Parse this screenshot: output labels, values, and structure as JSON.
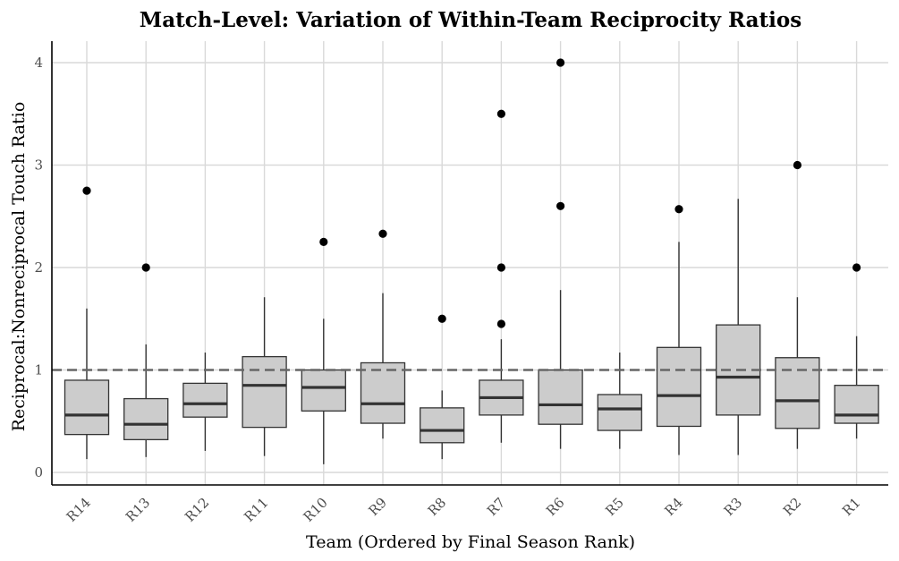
{
  "chart_data": {
    "type": "boxplot",
    "title": "Match-Level: Variation of Within-Team Reciprocity Ratios",
    "xlabel": "Team (Ordered by Final Season Rank)",
    "ylabel": "Reciprocal:Nonreciprocal Touch Ratio",
    "ylim": [
      -0.12,
      4.2
    ],
    "yticks": [
      0,
      1,
      2,
      3,
      4
    ],
    "reference_line": 1,
    "grid": true,
    "categories": [
      "R14",
      "R13",
      "R12",
      "R11",
      "R10",
      "R9",
      "R8",
      "R7",
      "R6",
      "R5",
      "R4",
      "R3",
      "R2",
      "R1"
    ],
    "boxes": [
      {
        "team": "R14",
        "min": 0.13,
        "q1": 0.37,
        "median": 0.56,
        "q3": 0.9,
        "max": 1.6,
        "outliers": [
          2.75
        ]
      },
      {
        "team": "R13",
        "min": 0.15,
        "q1": 0.32,
        "median": 0.47,
        "q3": 0.72,
        "max": 1.25,
        "outliers": [
          2.0
        ]
      },
      {
        "team": "R12",
        "min": 0.21,
        "q1": 0.54,
        "median": 0.67,
        "q3": 0.87,
        "max": 1.17,
        "outliers": []
      },
      {
        "team": "R11",
        "min": 0.16,
        "q1": 0.44,
        "median": 0.85,
        "q3": 1.13,
        "max": 1.71,
        "outliers": []
      },
      {
        "team": "R10",
        "min": 0.08,
        "q1": 0.6,
        "median": 0.83,
        "q3": 1.0,
        "max": 1.5,
        "outliers": [
          2.25
        ]
      },
      {
        "team": "R9",
        "min": 0.33,
        "q1": 0.48,
        "median": 0.67,
        "q3": 1.07,
        "max": 1.75,
        "outliers": [
          2.33
        ]
      },
      {
        "team": "R8",
        "min": 0.13,
        "q1": 0.29,
        "median": 0.41,
        "q3": 0.63,
        "max": 0.8,
        "outliers": [
          1.5
        ]
      },
      {
        "team": "R7",
        "min": 0.29,
        "q1": 0.56,
        "median": 0.73,
        "q3": 0.9,
        "max": 1.3,
        "outliers": [
          1.45,
          2.0,
          3.5
        ]
      },
      {
        "team": "R6",
        "min": 0.23,
        "q1": 0.47,
        "median": 0.66,
        "q3": 1.0,
        "max": 1.78,
        "outliers": [
          2.6,
          4.0
        ]
      },
      {
        "team": "R5",
        "min": 0.23,
        "q1": 0.41,
        "median": 0.62,
        "q3": 0.76,
        "max": 1.17,
        "outliers": []
      },
      {
        "team": "R4",
        "min": 0.17,
        "q1": 0.45,
        "median": 0.75,
        "q3": 1.22,
        "max": 2.25,
        "outliers": [
          2.57
        ]
      },
      {
        "team": "R3",
        "min": 0.17,
        "q1": 0.56,
        "median": 0.93,
        "q3": 1.44,
        "max": 2.67,
        "outliers": []
      },
      {
        "team": "R2",
        "min": 0.23,
        "q1": 0.43,
        "median": 0.7,
        "q3": 1.12,
        "max": 1.71,
        "outliers": [
          3.0
        ]
      },
      {
        "team": "R1",
        "min": 0.33,
        "q1": 0.48,
        "median": 0.56,
        "q3": 0.85,
        "max": 1.33,
        "outliers": [
          2.0
        ]
      }
    ]
  }
}
